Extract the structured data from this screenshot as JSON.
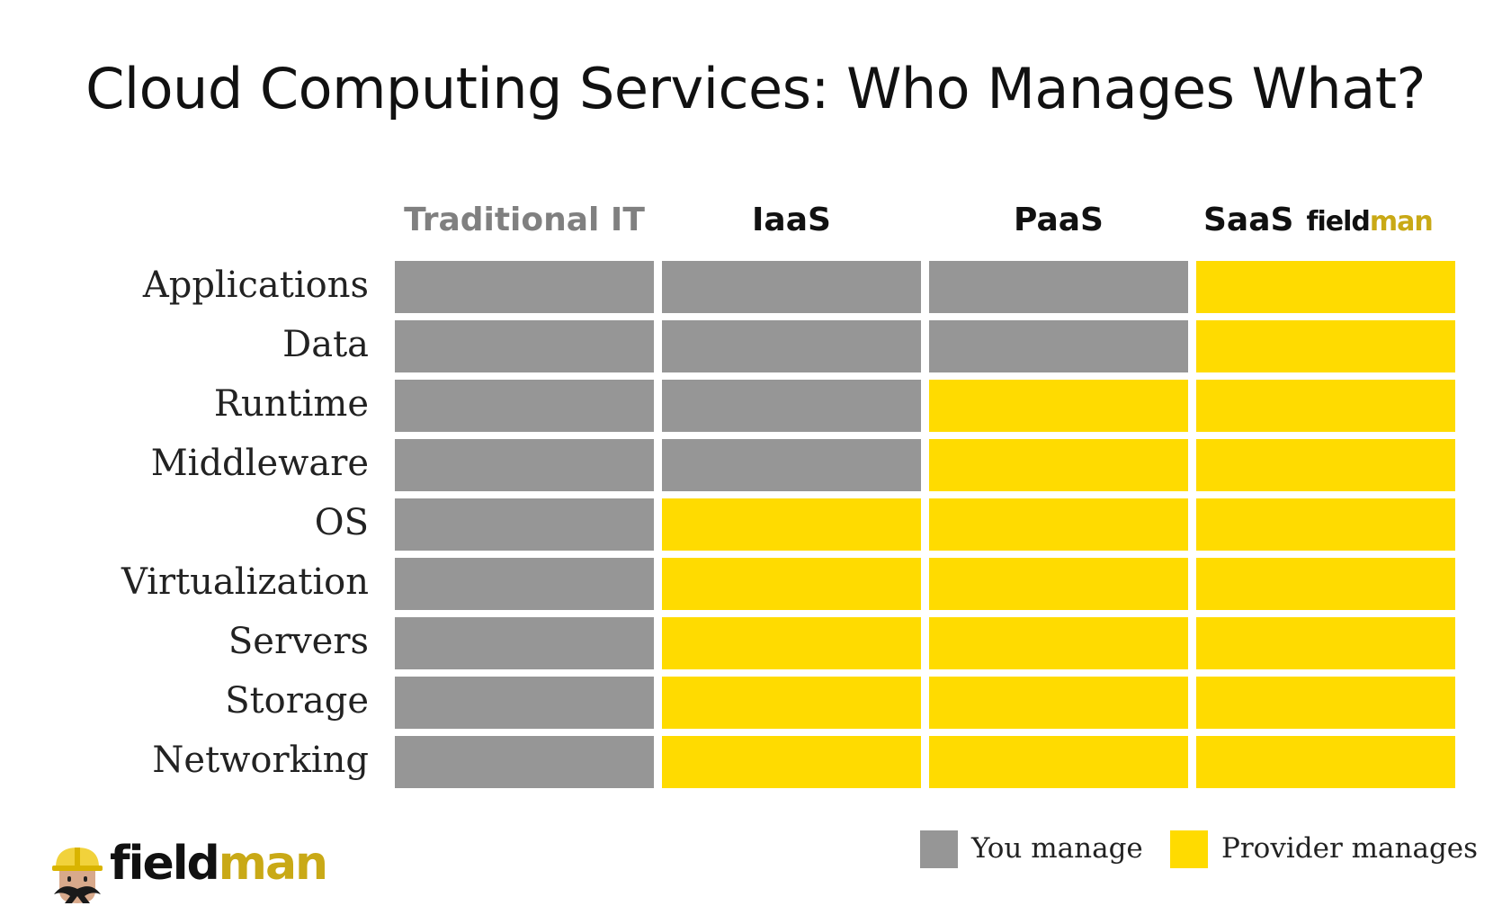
{
  "title": "Cloud Computing Services: Who Manages What?",
  "columns": [
    "Traditional IT",
    "IaaS",
    "PaaS",
    "SaaS"
  ],
  "rows": [
    "Applications",
    "Data",
    "Runtime",
    "Middleware",
    "OS",
    "Virtualization",
    "Servers",
    "Storage",
    "Networking"
  ],
  "cells": [
    [
      "you",
      "you",
      "you",
      "provider"
    ],
    [
      "you",
      "you",
      "you",
      "provider"
    ],
    [
      "you",
      "you",
      "provider",
      "provider"
    ],
    [
      "you",
      "you",
      "provider",
      "provider"
    ],
    [
      "you",
      "provider",
      "provider",
      "provider"
    ],
    [
      "you",
      "provider",
      "provider",
      "provider"
    ],
    [
      "you",
      "provider",
      "provider",
      "provider"
    ],
    [
      "you",
      "provider",
      "provider",
      "provider"
    ],
    [
      "you",
      "provider",
      "provider",
      "provider"
    ]
  ],
  "legend": {
    "you": "You manage",
    "provider": "Provider manages"
  },
  "brand": {
    "part1": "field",
    "part2": "man"
  },
  "colors": {
    "you": "#969696",
    "provider": "#ffdb00",
    "header_muted": "#808080",
    "brand_gold": "#c9a916"
  }
}
